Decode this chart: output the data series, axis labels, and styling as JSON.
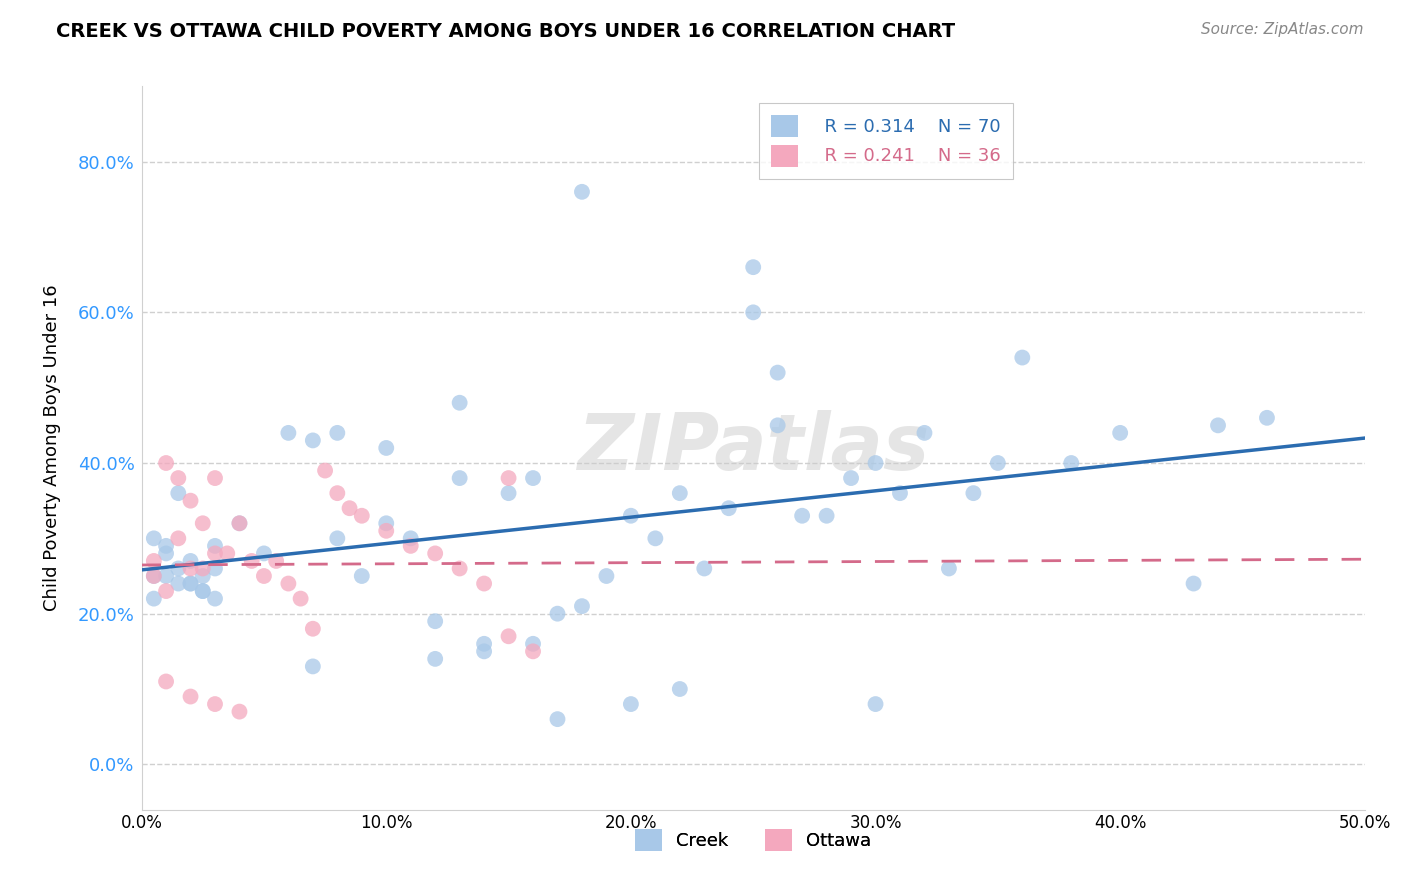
{
  "title": "CREEK VS OTTAWA CHILD POVERTY AMONG BOYS UNDER 16 CORRELATION CHART",
  "source": "Source: ZipAtlas.com",
  "ylabel": "Child Poverty Among Boys Under 16",
  "xlim": [
    0.0,
    0.5
  ],
  "ylim": [
    -0.06,
    0.9
  ],
  "yticks": [
    0.0,
    0.2,
    0.4,
    0.6,
    0.8
  ],
  "xticks": [
    0.0,
    0.1,
    0.2,
    0.3,
    0.4,
    0.5
  ],
  "creek_color": "#a8c8e8",
  "ottawa_color": "#f4a8be",
  "creek_line_color": "#2b6cb0",
  "ottawa_line_color": "#d46a8a",
  "grid_color": "#d0d0d0",
  "watermark": "ZIPatlas",
  "legend_r_creek": "R = 0.314",
  "legend_n_creek": "N = 70",
  "legend_r_ottawa": "R = 0.241",
  "legend_n_ottawa": "N = 36",
  "creek_x": [
    0.005,
    0.01,
    0.015,
    0.02,
    0.025,
    0.03,
    0.005,
    0.01,
    0.015,
    0.02,
    0.025,
    0.03,
    0.005,
    0.01,
    0.015,
    0.02,
    0.025,
    0.03,
    0.04,
    0.05,
    0.06,
    0.07,
    0.08,
    0.09,
    0.1,
    0.12,
    0.13,
    0.14,
    0.16,
    0.18,
    0.2,
    0.22,
    0.24,
    0.25,
    0.26,
    0.28,
    0.3,
    0.32,
    0.34,
    0.36,
    0.38,
    0.4,
    0.43,
    0.44,
    0.46,
    0.18,
    0.25,
    0.26,
    0.3,
    0.07,
    0.12,
    0.14,
    0.17,
    0.2,
    0.22,
    0.08,
    0.1,
    0.11,
    0.13,
    0.15,
    0.16,
    0.17,
    0.19,
    0.21,
    0.23,
    0.27,
    0.29,
    0.31,
    0.33,
    0.35
  ],
  "creek_y": [
    0.25,
    0.28,
    0.24,
    0.27,
    0.23,
    0.29,
    0.22,
    0.25,
    0.26,
    0.24,
    0.23,
    0.22,
    0.3,
    0.29,
    0.36,
    0.24,
    0.25,
    0.26,
    0.32,
    0.28,
    0.44,
    0.43,
    0.3,
    0.25,
    0.32,
    0.19,
    0.48,
    0.16,
    0.38,
    0.21,
    0.33,
    0.36,
    0.34,
    0.6,
    0.45,
    0.33,
    0.4,
    0.44,
    0.36,
    0.54,
    0.4,
    0.44,
    0.24,
    0.45,
    0.46,
    0.76,
    0.66,
    0.52,
    0.08,
    0.13,
    0.14,
    0.15,
    0.06,
    0.08,
    0.1,
    0.44,
    0.42,
    0.3,
    0.38,
    0.36,
    0.16,
    0.2,
    0.25,
    0.3,
    0.26,
    0.33,
    0.38,
    0.36,
    0.26,
    0.4
  ],
  "ottawa_x": [
    0.005,
    0.01,
    0.015,
    0.02,
    0.025,
    0.03,
    0.005,
    0.01,
    0.015,
    0.02,
    0.025,
    0.03,
    0.035,
    0.04,
    0.045,
    0.05,
    0.055,
    0.06,
    0.065,
    0.07,
    0.075,
    0.08,
    0.085,
    0.09,
    0.1,
    0.11,
    0.12,
    0.13,
    0.14,
    0.15,
    0.01,
    0.02,
    0.03,
    0.04,
    0.15,
    0.16
  ],
  "ottawa_y": [
    0.27,
    0.4,
    0.38,
    0.35,
    0.32,
    0.28,
    0.25,
    0.23,
    0.3,
    0.26,
    0.26,
    0.38,
    0.28,
    0.32,
    0.27,
    0.25,
    0.27,
    0.24,
    0.22,
    0.18,
    0.39,
    0.36,
    0.34,
    0.33,
    0.31,
    0.29,
    0.28,
    0.26,
    0.24,
    0.38,
    0.11,
    0.09,
    0.08,
    0.07,
    0.17,
    0.15
  ]
}
